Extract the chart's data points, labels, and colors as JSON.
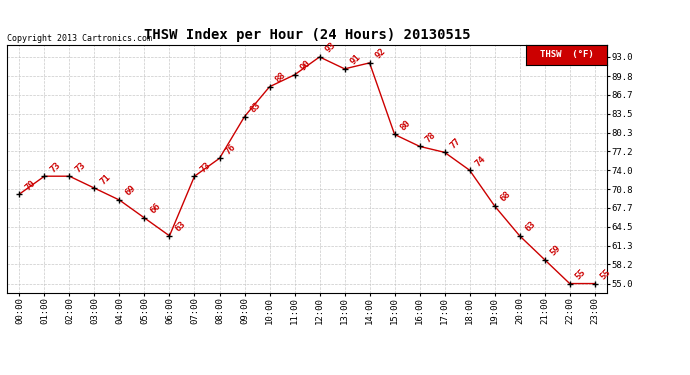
{
  "title": "THSW Index per Hour (24 Hours) 20130515",
  "copyright": "Copyright 2013 Cartronics.com",
  "legend_label": "THSW  (°F)",
  "hours": [
    0,
    1,
    2,
    3,
    4,
    5,
    6,
    7,
    8,
    9,
    10,
    11,
    12,
    13,
    14,
    15,
    16,
    17,
    18,
    19,
    20,
    21,
    22,
    23
  ],
  "values": [
    70,
    73,
    73,
    71,
    69,
    66,
    63,
    73,
    76,
    83,
    88,
    90,
    93,
    91,
    92,
    80,
    78,
    77,
    74,
    68,
    63,
    59,
    55,
    55
  ],
  "xlabels": [
    "00:00",
    "01:00",
    "02:00",
    "03:00",
    "04:00",
    "05:00",
    "06:00",
    "07:00",
    "08:00",
    "09:00",
    "10:00",
    "11:00",
    "12:00",
    "13:00",
    "14:00",
    "15:00",
    "16:00",
    "17:00",
    "18:00",
    "19:00",
    "20:00",
    "21:00",
    "22:00",
    "23:00"
  ],
  "yticks": [
    55.0,
    58.2,
    61.3,
    64.5,
    67.7,
    70.8,
    74.0,
    77.2,
    80.3,
    83.5,
    86.7,
    89.8,
    93.0
  ],
  "ylim": [
    53.5,
    95.0
  ],
  "line_color": "#cc0000",
  "marker_color": "#000000",
  "label_color": "#cc0000",
  "background_color": "#ffffff",
  "grid_color": "#bbbbbb",
  "title_fontsize": 10,
  "label_fontsize": 6.5,
  "tick_fontsize": 6.5,
  "legend_bg": "#cc0000",
  "legend_text_color": "#ffffff"
}
